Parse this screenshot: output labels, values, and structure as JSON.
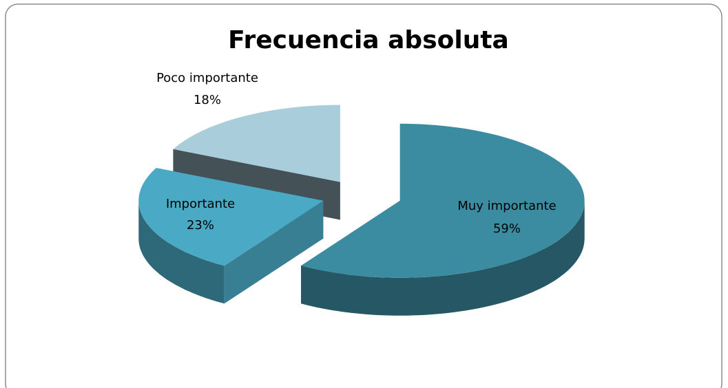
{
  "chart_data": {
    "type": "pie",
    "title": "Frecuencia absoluta",
    "categories": [
      "Muy importante",
      "Importante",
      "Poco importante"
    ],
    "values": [
      59,
      23,
      18
    ],
    "value_labels": [
      "59%",
      "23%",
      "18%"
    ],
    "colors": [
      "#3b8ca1",
      "#4aa9c4",
      "#a9cddb"
    ]
  }
}
